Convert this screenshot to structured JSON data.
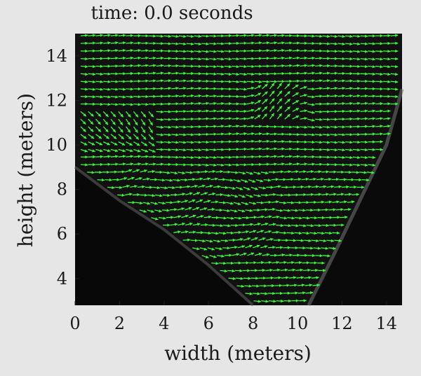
{
  "chart_data": {
    "type": "vector_field",
    "title": "time: 0.0 seconds",
    "xlabel": "width (meters)",
    "ylabel": "height (meters)",
    "xlim": [
      0,
      14.7
    ],
    "ylim": [
      2.8,
      15.0
    ],
    "xticks": [
      0,
      2,
      4,
      6,
      8,
      10,
      12,
      14
    ],
    "yticks": [
      4,
      6,
      8,
      10,
      12,
      14
    ],
    "xtick_labels": [
      "0",
      "2",
      "4",
      "6",
      "8",
      "10",
      "12",
      "14"
    ],
    "ytick_labels": [
      "4",
      "6",
      "8",
      "10",
      "12",
      "14"
    ],
    "grid": false,
    "background_color": "#111111",
    "arrow_color": "#33ff33",
    "dark_region_boundary_left": [
      [
        0,
        9.0
      ],
      [
        2.0,
        7.5
      ],
      [
        4.0,
        6.2
      ],
      [
        6.0,
        4.6
      ],
      [
        8.0,
        2.8
      ]
    ],
    "dark_region_boundary_right": [
      [
        10.5,
        2.8
      ],
      [
        11.6,
        5.0
      ],
      [
        12.8,
        7.5
      ],
      [
        14.0,
        10.0
      ],
      [
        14.7,
        12.5
      ]
    ]
  }
}
